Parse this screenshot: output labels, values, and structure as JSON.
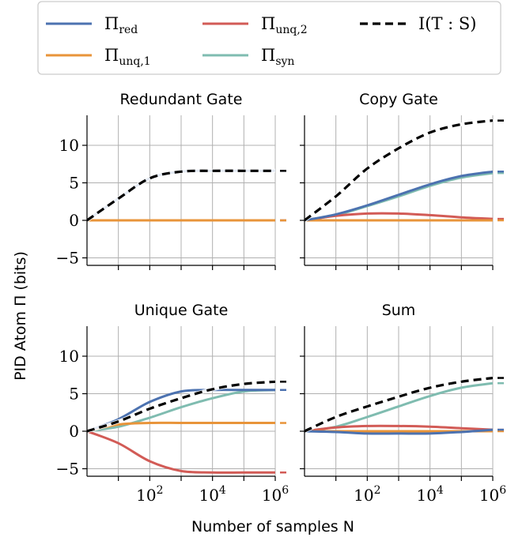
{
  "figure": {
    "ylabel": "PID Atom Π (bits)",
    "xlabel": "Number of samples N",
    "legend": [
      {
        "label": "Π",
        "sub": "red",
        "color": "#4c72b0",
        "dashed": false
      },
      {
        "label": "Π",
        "sub": "unq,1",
        "color": "#e8943a",
        "dashed": false
      },
      {
        "label": "Π",
        "sub": "unq,2",
        "color": "#d25b56",
        "dashed": false
      },
      {
        "label": "Π",
        "sub": "syn",
        "color": "#7fbcb0",
        "dashed": false
      },
      {
        "label": "I(T : S)",
        "sub": "",
        "color": "#000000",
        "dashed": true
      }
    ]
  },
  "chart_data": [
    {
      "type": "line",
      "title": "Redundant Gate",
      "xscale": "log",
      "xlim": [
        1,
        1000000
      ],
      "ylim": [
        -6,
        14
      ],
      "yticks": [
        -5,
        0,
        5,
        10
      ],
      "xticks": [
        "10^2",
        "10^4",
        "10^6"
      ],
      "x": [
        1,
        10,
        100,
        1000,
        10000,
        100000,
        1000000
      ],
      "series": [
        {
          "name": "Π_red",
          "values": [
            0,
            2.9,
            5.6,
            6.5,
            6.6,
            6.6,
            6.6
          ]
        },
        {
          "name": "Π_unq,1",
          "values": [
            0,
            0,
            0,
            0,
            0,
            0,
            0
          ]
        },
        {
          "name": "Π_unq,2",
          "values": [
            0,
            0,
            0,
            0,
            0,
            0,
            0
          ]
        },
        {
          "name": "Π_syn",
          "values": [
            0,
            0,
            0,
            0,
            0,
            0,
            0
          ]
        },
        {
          "name": "I(T : S)",
          "values": [
            0,
            2.9,
            5.6,
            6.5,
            6.6,
            6.6,
            6.6
          ]
        }
      ]
    },
    {
      "type": "line",
      "title": "Copy Gate",
      "xscale": "log",
      "xlim": [
        1,
        1000000
      ],
      "ylim": [
        -6,
        14
      ],
      "yticks": [
        -5,
        0,
        5,
        10
      ],
      "xticks": [
        "10^2",
        "10^4",
        "10^6"
      ],
      "x": [
        1,
        10,
        100,
        1000,
        10000,
        100000,
        1000000
      ],
      "series": [
        {
          "name": "Π_red",
          "values": [
            0,
            0.8,
            2.0,
            3.4,
            4.8,
            5.9,
            6.5
          ]
        },
        {
          "name": "Π_unq,1",
          "values": [
            0,
            0,
            0,
            0,
            0,
            0,
            0
          ]
        },
        {
          "name": "Π_unq,2",
          "values": [
            0,
            0.6,
            0.9,
            0.9,
            0.7,
            0.4,
            0.2
          ]
        },
        {
          "name": "Π_syn",
          "values": [
            0,
            0.7,
            1.9,
            3.2,
            4.6,
            5.7,
            6.3
          ]
        },
        {
          "name": "I(T : S)",
          "values": [
            0,
            3.2,
            6.9,
            9.6,
            11.7,
            12.8,
            13.3
          ]
        }
      ]
    },
    {
      "type": "line",
      "title": "Unique Gate",
      "xscale": "log",
      "xlim": [
        1,
        1000000
      ],
      "ylim": [
        -6,
        14
      ],
      "yticks": [
        -5,
        0,
        5,
        10
      ],
      "xticks": [
        "10^2",
        "10^4",
        "10^6"
      ],
      "x": [
        1,
        10,
        100,
        1000,
        10000,
        100000,
        1000000
      ],
      "series": [
        {
          "name": "Π_red",
          "values": [
            0,
            1.6,
            3.9,
            5.3,
            5.5,
            5.5,
            5.5
          ]
        },
        {
          "name": "Π_unq,1",
          "values": [
            0,
            0.9,
            1.1,
            1.1,
            1.1,
            1.1,
            1.1
          ]
        },
        {
          "name": "Π_unq,2",
          "values": [
            0,
            -1.6,
            -4.0,
            -5.3,
            -5.5,
            -5.5,
            -5.5
          ]
        },
        {
          "name": "Π_syn",
          "values": [
            0,
            0.6,
            1.8,
            3.2,
            4.4,
            5.3,
            5.5
          ]
        },
        {
          "name": "I(T : S)",
          "values": [
            0,
            1.3,
            3.0,
            4.4,
            5.6,
            6.3,
            6.6
          ]
        }
      ]
    },
    {
      "type": "line",
      "title": "Sum",
      "xscale": "log",
      "xlim": [
        1,
        1000000
      ],
      "ylim": [
        -6,
        14
      ],
      "yticks": [
        -5,
        0,
        5,
        10
      ],
      "xticks": [
        "10^2",
        "10^4",
        "10^6"
      ],
      "x": [
        1,
        10,
        100,
        1000,
        10000,
        100000,
        1000000
      ],
      "series": [
        {
          "name": "Π_red",
          "values": [
            0,
            -0.1,
            -0.3,
            -0.3,
            -0.3,
            -0.1,
            0.2
          ]
        },
        {
          "name": "Π_unq,1",
          "values": [
            0,
            0,
            0,
            0,
            0,
            0,
            0
          ]
        },
        {
          "name": "Π_unq,2",
          "values": [
            0,
            0.5,
            0.7,
            0.7,
            0.6,
            0.4,
            0.2
          ]
        },
        {
          "name": "Π_syn",
          "values": [
            0,
            0.6,
            1.9,
            3.3,
            4.7,
            5.8,
            6.4
          ]
        },
        {
          "name": "I(T : S)",
          "values": [
            0,
            1.9,
            3.3,
            4.6,
            5.8,
            6.6,
            7.1
          ]
        }
      ]
    }
  ]
}
